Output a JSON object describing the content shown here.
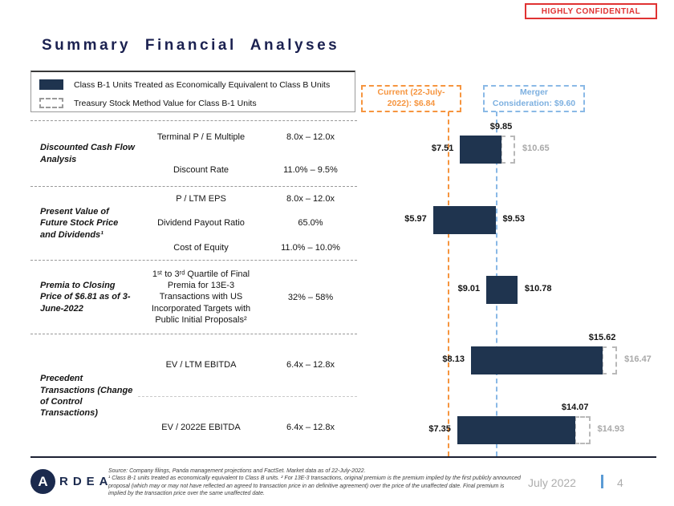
{
  "badge": {
    "label": "HIGHLY CONFIDENTIAL"
  },
  "title": "Summary Financial Analyses",
  "legend": {
    "solid_label": "Class B-1 Units Treated as Economically Equivalent to Class B Units",
    "dashed_label": "Treasury Stock Method Value for Class B-1 Units"
  },
  "analyses": [
    {
      "label": "Discounted Cash Flow Analysis",
      "metrics": [
        {
          "name": "Terminal P / E Multiple",
          "range": "8.0x – 12.0x"
        },
        {
          "name": "Discount Rate",
          "range": "11.0% – 9.5%"
        }
      ]
    },
    {
      "label": "Present Value of Future Stock Price and Dividends¹",
      "metrics": [
        {
          "name": "P / LTM EPS",
          "range": "8.0x – 12.0x"
        },
        {
          "name": "Dividend Payout Ratio",
          "range": "65.0%"
        },
        {
          "name": "Cost of Equity",
          "range": "11.0% – 10.0%"
        }
      ]
    },
    {
      "label": "Premia to Closing Price of $6.81 as of 3-June-2022",
      "metrics": [
        {
          "name": "1ˢᵗ to 3ʳᵈ Quartile of Final Premia for 13E-3 Transactions with US Incorporated Targets with Public Initial Proposals²",
          "range": "32% – 58%"
        }
      ]
    },
    {
      "label": "Precedent Transactions (Change of Control Transactions)",
      "divided": true,
      "metrics": [
        {
          "name": "EV / LTM EBITDA",
          "range": "6.4x – 12.8x"
        },
        {
          "name": "EV / 2022E EBITDA",
          "range": "6.4x – 12.8x"
        }
      ]
    }
  ],
  "chart_data": {
    "type": "bar",
    "subtype": "horizontal-range-bars (valuation football field, $ per unit)",
    "bar_color": "#1f344f",
    "treasury_ext_color": "#b9b9b9",
    "xlim": [
      5.0,
      17.5
    ],
    "bars": [
      {
        "analysis": "Discounted Cash Flow Analysis",
        "low": 7.51,
        "high": 9.85,
        "treasury": 10.65
      },
      {
        "analysis": "Present Value of Future Stock Price and Dividends",
        "low": 5.97,
        "high": 9.53,
        "treasury": null
      },
      {
        "analysis": "Premia to Closing Price of $6.81 as of 3-June-2022",
        "low": 9.01,
        "high": 10.78,
        "treasury": null
      },
      {
        "analysis": "Precedent Transactions — EV / LTM EBITDA",
        "low": 8.13,
        "high": 15.62,
        "treasury": 16.47
      },
      {
        "analysis": "Precedent Transactions — EV / 2022E EBITDA",
        "low": 7.35,
        "high": 14.07,
        "treasury": 14.93
      }
    ],
    "reference_lines": [
      {
        "id": "current",
        "label": "Current (22-July-2022): $6.84",
        "value": 6.84,
        "color": "#f6953f"
      },
      {
        "id": "merger",
        "label": "Merger Consideration: $9.60",
        "value": 9.6,
        "color": "#8ab9e6"
      }
    ]
  },
  "footer": {
    "logo_initial": "A",
    "logo_rest": "RDEA",
    "source_line": "Source: Company filings, Panda management projections and FactSet. Market data as of 22-July-2022.",
    "footnotes": "¹ Class B-1 units treated as economically equivalent to Class B units. ² For 13E-3 transactions, original premium is the premium implied by the first publicly announced proposal (which may or may not have reflected an agreed to transaction price in an definitive agreement) over the price of the unaffected date. Final premium is implied by the transaction price over the same unaffected date.",
    "page_date": "July 2022",
    "page_number": "4"
  }
}
